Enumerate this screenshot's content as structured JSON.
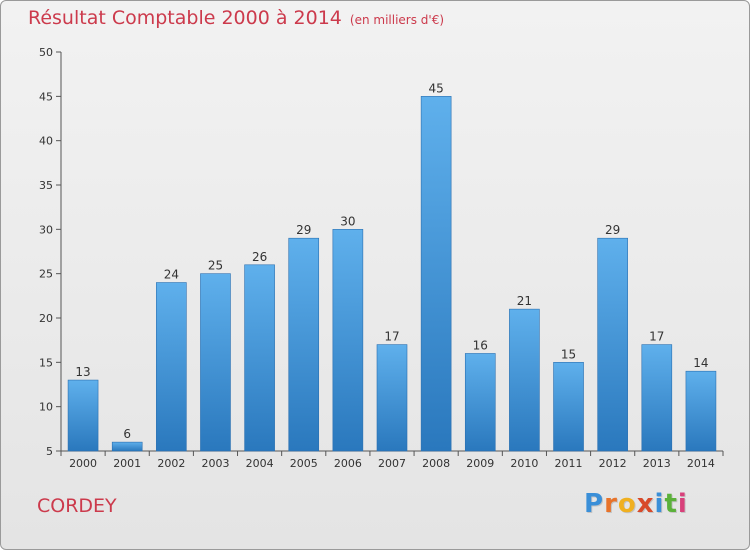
{
  "header": {
    "title": "Résultat Comptable 2000 à 2014",
    "subtitle": "(en milliers d'€)"
  },
  "footer": {
    "commune": "CORDEY",
    "logo_letters": [
      "P",
      "r",
      "o",
      "x",
      "i",
      "t",
      "i"
    ],
    "logo_colors": [
      "#3a8fd8",
      "#e8732a",
      "#f0b020",
      "#d84a2a",
      "#3a8fd8",
      "#5bb13a",
      "#d8407a"
    ]
  },
  "colors": {
    "bar_top": "#5fb0ec",
    "bar_bottom": "#2a78bd",
    "axis": "#555555",
    "grid": "#cccccc"
  },
  "chart_data": {
    "type": "bar",
    "title": "Résultat Comptable 2000 à 2014",
    "subtitle": "(en milliers d'€)",
    "categories": [
      "2000",
      "2001",
      "2002",
      "2003",
      "2004",
      "2005",
      "2006",
      "2007",
      "2008",
      "2009",
      "2010",
      "2011",
      "2012",
      "2013",
      "2014"
    ],
    "values": [
      13,
      6,
      24,
      25,
      26,
      29,
      30,
      17,
      45,
      16,
      21,
      15,
      29,
      17,
      14
    ],
    "ylim": [
      5,
      50
    ],
    "yticks": [
      5,
      10,
      15,
      20,
      25,
      30,
      35,
      40,
      45,
      50
    ],
    "grid": false,
    "data_labels": true
  }
}
